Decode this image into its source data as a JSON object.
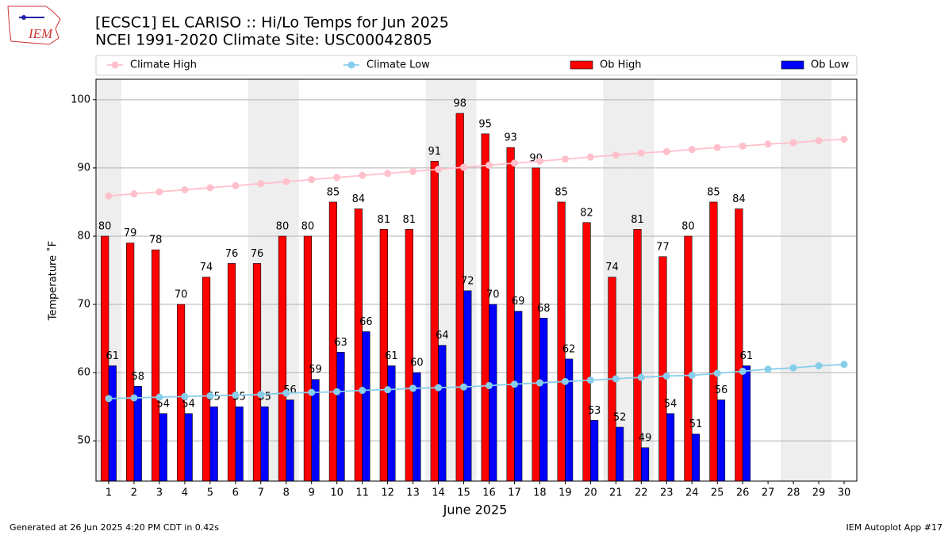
{
  "logo_text": "IEM",
  "footer_left": "Generated at 26 Jun 2025 4:20 PM CDT in 0.42s",
  "footer_right": "IEM Autoplot App #17",
  "chart_data": {
    "type": "bar_line",
    "title": "[ECSC1] EL CARISO :: Hi/Lo Temps for Jun 2025",
    "subtitle": "NCEI 1991-2020 Climate Site: USC00042805",
    "xlabel": "June 2025",
    "ylabel": "Temperature ˚F",
    "x": [
      1,
      2,
      3,
      4,
      5,
      6,
      7,
      8,
      9,
      10,
      11,
      12,
      13,
      14,
      15,
      16,
      17,
      18,
      19,
      20,
      21,
      22,
      23,
      24,
      25,
      26,
      27,
      28,
      29,
      30
    ],
    "xlim": [
      0.5,
      30.5
    ],
    "xticks": [
      1,
      2,
      3,
      4,
      5,
      6,
      7,
      8,
      9,
      10,
      11,
      12,
      13,
      14,
      15,
      16,
      17,
      18,
      19,
      20,
      21,
      22,
      23,
      24,
      25,
      26,
      27,
      28,
      29,
      30
    ],
    "ylim": [
      44.1,
      103.0
    ],
    "yticks": [
      50,
      60,
      70,
      80,
      90,
      100
    ],
    "grid": true,
    "legend": "top",
    "shaded_days": [
      1,
      7,
      8,
      14,
      15,
      21,
      22,
      28,
      29
    ],
    "shade_color": "#eeeeee",
    "series": [
      {
        "name": "Climate High",
        "kind": "line",
        "color": "#ffc0cb",
        "values": [
          85.9,
          86.2,
          86.5,
          86.8,
          87.1,
          87.4,
          87.7,
          88.0,
          88.3,
          88.6,
          88.9,
          89.2,
          89.5,
          89.8,
          90.1,
          90.4,
          90.7,
          91.0,
          91.3,
          91.6,
          91.9,
          92.2,
          92.4,
          92.7,
          93.0,
          93.2,
          93.5,
          93.7,
          94.0,
          94.2
        ]
      },
      {
        "name": "Climate Low",
        "kind": "line",
        "color": "#87ceeb",
        "values": [
          56.2,
          56.3,
          56.4,
          56.5,
          56.6,
          56.7,
          56.8,
          57.0,
          57.1,
          57.2,
          57.4,
          57.5,
          57.7,
          57.8,
          57.9,
          58.1,
          58.3,
          58.5,
          58.7,
          58.9,
          59.1,
          59.3,
          59.5,
          59.6,
          59.9,
          60.2,
          60.5,
          60.7,
          61.0,
          61.2
        ]
      },
      {
        "name": "Ob High",
        "kind": "bar",
        "color": "#ff0000",
        "values": [
          80,
          79,
          78,
          70,
          74,
          76,
          76,
          80,
          80,
          85,
          84,
          81,
          81,
          91,
          98,
          95,
          93,
          90,
          85,
          82,
          74,
          81,
          77,
          80,
          85,
          84,
          null,
          null,
          null,
          null
        ]
      },
      {
        "name": "Ob Low",
        "kind": "bar",
        "color": "#0000ff",
        "values": [
          61,
          58,
          54,
          54,
          55,
          55,
          55,
          56,
          59,
          63,
          66,
          61,
          60,
          64,
          72,
          70,
          69,
          68,
          62,
          53,
          52,
          49,
          54,
          51,
          56,
          61,
          null,
          null,
          null,
          null
        ]
      }
    ]
  }
}
